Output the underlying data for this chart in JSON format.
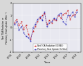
{
  "title": "",
  "xlabel": "Year",
  "ylabel_left": "Net TOA Radiation or\nPlanetary Heat Uptake (Wm⁻²)",
  "xlim": [
    2005,
    2019.5
  ],
  "ylim": [
    -2,
    2
  ],
  "yticks": [
    -2,
    -1,
    0,
    1,
    2
  ],
  "xticks": [
    2005,
    2007,
    2009,
    2011,
    2013,
    2015,
    2017,
    2019
  ],
  "legend1": "Net TOA Radiation (CERES)",
  "legend2": "Planetary Heat Uptake (In Situ)",
  "bg_color": "#d8d8d8",
  "plot_bg": "#e8e8f0",
  "ceres_color": "#cc2222",
  "insitu_color": "#3333bb",
  "ceres_x": [
    2005.25,
    2005.75,
    2006.25,
    2006.75,
    2007.25,
    2007.75,
    2008.25,
    2008.75,
    2009.25,
    2009.75,
    2010.25,
    2010.75,
    2011.25,
    2011.75,
    2012.25,
    2012.75,
    2013.25,
    2013.75,
    2014.25,
    2014.75,
    2015.25,
    2015.75,
    2016.25,
    2016.75,
    2017.25,
    2017.75,
    2018.25,
    2018.75
  ],
  "ceres_y": [
    0.4,
    0.7,
    0.2,
    0.5,
    -0.1,
    0.2,
    -0.5,
    -0.9,
    -0.3,
    0.1,
    0.5,
    0.8,
    1.0,
    1.2,
    0.3,
    0.6,
    0.4,
    0.7,
    0.6,
    1.0,
    0.8,
    1.1,
    1.2,
    1.4,
    0.7,
    1.0,
    1.1,
    1.5
  ],
  "insitu_x": [
    2005.25,
    2005.75,
    2006.25,
    2006.75,
    2007.25,
    2007.75,
    2008.25,
    2008.75,
    2009.25,
    2009.75,
    2010.25,
    2010.75,
    2011.25,
    2011.75,
    2012.25,
    2012.75,
    2013.25,
    2013.75,
    2014.25,
    2014.75,
    2015.25,
    2015.75,
    2016.25,
    2016.75,
    2017.25,
    2017.75,
    2018.25,
    2018.75
  ],
  "insitu_y": [
    0.3,
    0.5,
    -0.2,
    0.1,
    -0.4,
    -0.7,
    -0.8,
    -1.1,
    0.0,
    0.3,
    0.7,
    0.9,
    0.6,
    1.3,
    0.1,
    0.4,
    0.5,
    0.8,
    0.7,
    1.1,
    1.2,
    0.5,
    0.3,
    1.0,
    1.0,
    1.3,
    0.9,
    1.3
  ]
}
